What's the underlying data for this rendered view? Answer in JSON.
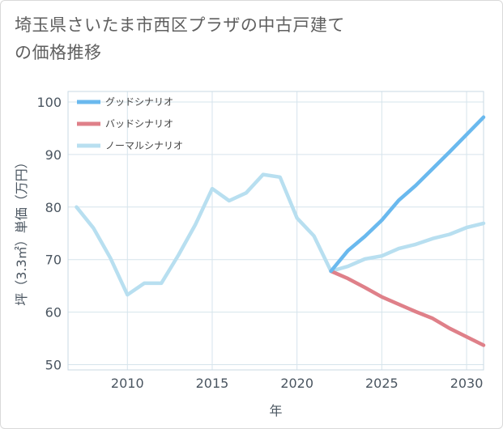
{
  "chart_data": {
    "type": "line",
    "title": "埼玉県さいたま市西区プラザの中古戸建ての価格推移",
    "xlabel": "年",
    "ylabel": "坪（3.3㎡）単価（万円）",
    "xlim": [
      2006.5,
      2031
    ],
    "ylim": [
      49,
      102
    ],
    "x_ticks": [
      2010,
      2015,
      2020,
      2025,
      2030
    ],
    "y_ticks": [
      50,
      60,
      70,
      80,
      90,
      100
    ],
    "legend_position": "top-left",
    "series": [
      {
        "name": "グッドシナリオ",
        "color": "#6ab9ee",
        "x": [
          2022,
          2023,
          2024,
          2025,
          2026,
          2027,
          2028,
          2029,
          2030,
          2031
        ],
        "y": [
          67.8,
          71.7,
          74.4,
          77.5,
          81.3,
          84.1,
          87.3,
          90.5,
          93.8,
          97.1
        ]
      },
      {
        "name": "バッドシナリオ",
        "color": "#df8089",
        "x": [
          2022,
          2023,
          2024,
          2025,
          2026,
          2027,
          2028,
          2029,
          2030,
          2031
        ],
        "y": [
          67.8,
          66.4,
          64.7,
          62.9,
          61.5,
          60.1,
          58.8,
          56.9,
          55.3,
          53.7
        ]
      },
      {
        "name": "ノーマルシナリオ",
        "color": "#b8dff0",
        "x": [
          2007,
          2008,
          2009,
          2010,
          2011,
          2012,
          2013,
          2014,
          2015,
          2016,
          2017,
          2018,
          2019,
          2020,
          2021,
          2022,
          2023,
          2024,
          2025,
          2026,
          2027,
          2028,
          2029,
          2030,
          2031
        ],
        "y": [
          80.0,
          76.0,
          70.3,
          63.3,
          65.5,
          65.5,
          70.8,
          76.6,
          83.5,
          81.2,
          82.7,
          86.2,
          85.7,
          77.9,
          74.5,
          67.8,
          68.7,
          70.1,
          70.7,
          72.1,
          72.9,
          74.0,
          74.8,
          76.1,
          76.9
        ]
      }
    ]
  }
}
